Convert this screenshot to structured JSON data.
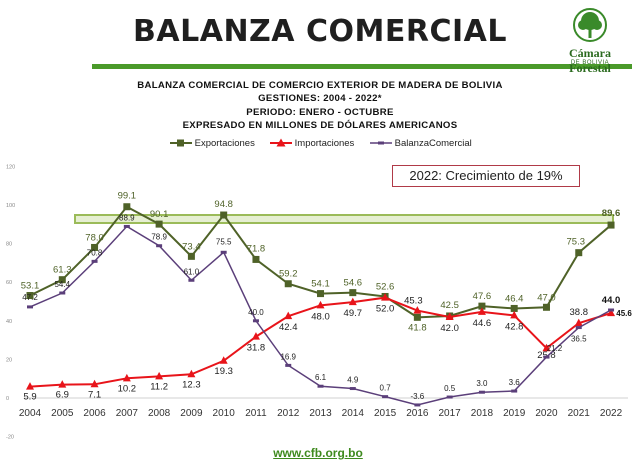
{
  "header": {
    "title": "BALANZA COMERCIAL"
  },
  "logo": {
    "name": "Cámara Forestal",
    "sub": "DE BOLIVIA"
  },
  "callout": {
    "text": "2022: Crecimiento de 19%"
  },
  "footer": {
    "url": "www.cfb.org.bo"
  },
  "colors": {
    "exportaciones": "#4f6228",
    "importaciones": "#e8141a",
    "balanza": "#5b3f7a",
    "highlight_band": "#9bbb59",
    "title_rule": "#4a9a2a"
  },
  "chart_data": {
    "type": "line",
    "title": "BALANZA COMERCIAL DE COMERCIO EXTERIOR DE MADERA DE BOLIVIA",
    "subtitles": [
      "GESTIONES: 2004 - 2022*",
      "PERIODO: ENERO - OCTUBRE",
      "EXPRESADO EN MILLONES DE DÓLARES AMERICANOS"
    ],
    "categories": [
      "2004",
      "2005",
      "2006",
      "2007",
      "2008",
      "2009",
      "2010",
      "2011",
      "2012",
      "2013",
      "2014",
      "2015",
      "2016",
      "2017",
      "2018",
      "2019",
      "2020",
      "2021",
      "2022"
    ],
    "ylim": [
      -20,
      120
    ],
    "yticks": [
      "-20",
      "0",
      "20",
      "40",
      "60",
      "80",
      "100",
      "120"
    ],
    "grid": false,
    "legend_position": "top",
    "series": [
      {
        "name": "Exportaciones",
        "marker": "square",
        "values": [
          53.1,
          61.3,
          78.0,
          99.1,
          90.1,
          73.4,
          94.8,
          71.8,
          59.2,
          54.1,
          54.6,
          52.6,
          41.8,
          42.5,
          47.6,
          46.4,
          47.0,
          75.3,
          89.6
        ],
        "labels": [
          "53.1",
          "61.3",
          "78.0",
          "99.1",
          "90.1",
          "73.4",
          "94.8",
          "71.8",
          "59.2",
          "54.1",
          "54.6",
          "52.6",
          "41.8",
          "42.5",
          "47.6",
          "46.4",
          "47.0",
          "75.3",
          "89.6"
        ]
      },
      {
        "name": "Importaciones",
        "marker": "triangle",
        "values": [
          5.9,
          6.9,
          7.1,
          10.2,
          11.2,
          12.3,
          19.3,
          31.8,
          42.4,
          48.0,
          49.7,
          52.0,
          45.3,
          42.0,
          44.6,
          42.8,
          25.8,
          38.8,
          44.0
        ],
        "labels": [
          "5.9",
          "6.9",
          "7.1",
          "10.2",
          "11.2",
          "12.3",
          "19.3",
          "31.8",
          "42.4",
          "48.0",
          "49.7",
          "52.0",
          "45.3",
          "42.0",
          "44.6",
          "42.8",
          "25.8",
          "38.8",
          "44.0"
        ]
      },
      {
        "name": "BalanzaComercial",
        "marker": "dash",
        "values": [
          47.2,
          54.4,
          70.8,
          88.9,
          78.9,
          61.0,
          75.5,
          40.0,
          16.9,
          6.1,
          4.9,
          0.7,
          -3.6,
          0.5,
          3.0,
          3.6,
          21.2,
          36.5,
          45.6
        ],
        "labels": [
          "47.2",
          "54.4",
          "70.8",
          "88.9",
          "78.9",
          "61.0",
          "75.5",
          "40.0",
          "16.9",
          "6.1",
          "4.9",
          "0.7",
          "-3.6",
          "0.5",
          "3.0",
          "3.6",
          "21.2",
          "36.5",
          "45.6"
        ]
      }
    ]
  }
}
